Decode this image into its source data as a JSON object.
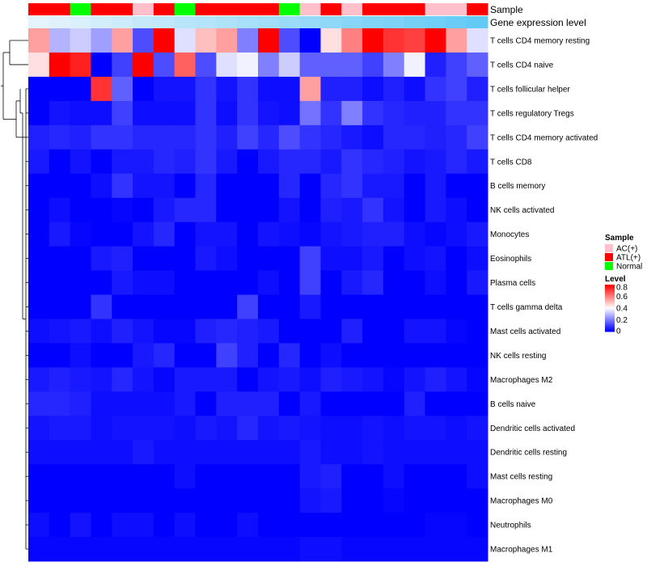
{
  "chart_data": {
    "type": "heatmap",
    "title": "",
    "annotation_tracks": [
      {
        "name": "Sample",
        "values": [
          "ATL(+)",
          "ATL(+)",
          "Normal",
          "ATL(+)",
          "ATL(+)",
          "AC(+)",
          "ATL(+)",
          "Normal",
          "ATL(+)",
          "ATL(+)",
          "ATL(+)",
          "ATL(+)",
          "Normal",
          "AC(+)",
          "ATL(+)",
          "AC(+)",
          "ATL(+)",
          "ATL(+)",
          "ATL(+)",
          "AC(+)",
          "AC(+)",
          "ATL(+)"
        ]
      },
      {
        "name": "Gene expression level",
        "values": [
          0.02,
          0.06,
          0.1,
          0.15,
          0.2,
          0.24,
          0.28,
          0.33,
          0.37,
          0.42,
          0.46,
          0.5,
          0.55,
          0.59,
          0.63,
          0.68,
          0.72,
          0.76,
          0.81,
          0.85,
          0.9,
          0.95
        ]
      }
    ],
    "rows": [
      "T cells CD4 memory resting",
      "T cells CD4 naive",
      "T cells follicular helper",
      "T cells regulatory  Tregs",
      "T cells CD4 memory activated",
      "T cells CD8",
      "B cells memory",
      "NK cells activated",
      "Monocytes",
      "Eosinophils",
      "Plasma cells",
      "T cells gamma delta",
      "Mast cells activated",
      "NK cells resting",
      "Macrophages M2",
      "B cells naive",
      "Dendritic cells activated",
      "Dendritic cells resting",
      "Mast cells resting",
      "Macrophages M0",
      "Neutrophils",
      "Macrophages M1"
    ],
    "values": [
      [
        0.55,
        0.28,
        0.32,
        0.25,
        0.55,
        0.12,
        0.8,
        0.35,
        0.5,
        0.55,
        0.2,
        0.8,
        0.12,
        0,
        0.45,
        0.6,
        0.8,
        0.72,
        0.7,
        0.8,
        0.55,
        0.35
      ],
      [
        0.45,
        0.8,
        0.75,
        0,
        0.1,
        0.8,
        0.12,
        0.65,
        0.12,
        0.35,
        0.38,
        0.2,
        0.32,
        0.15,
        0.15,
        0.15,
        0.1,
        0.2,
        0.38,
        0.05,
        0.1,
        0.15
      ],
      [
        0,
        0,
        0,
        0.72,
        0.15,
        0,
        0.03,
        0.03,
        0.08,
        0.03,
        0.08,
        0.02,
        0.02,
        0.55,
        0.05,
        0.05,
        0.02,
        0.05,
        0.02,
        0.08,
        0.1,
        0.05
      ],
      [
        0,
        0.03,
        0.02,
        0.02,
        0.1,
        0.02,
        0.02,
        0.02,
        0.08,
        0.02,
        0.08,
        0.03,
        0.02,
        0.18,
        0.08,
        0.2,
        0.08,
        0.06,
        0.05,
        0.05,
        0.08,
        0.08
      ],
      [
        0.05,
        0.06,
        0.05,
        0.08,
        0.08,
        0.06,
        0.06,
        0.06,
        0.08,
        0.05,
        0.1,
        0.06,
        0.12,
        0.08,
        0.06,
        0.04,
        0.02,
        0.06,
        0.06,
        0.05,
        0.06,
        0.1
      ],
      [
        0.04,
        0,
        0.03,
        0,
        0.04,
        0.04,
        0.06,
        0.05,
        0.08,
        0.04,
        0,
        0.04,
        0.06,
        0.06,
        0.04,
        0.08,
        0.06,
        0.05,
        0.03,
        0.04,
        0.06,
        0.04
      ],
      [
        0,
        0,
        0,
        0.02,
        0.08,
        0.03,
        0.03,
        0,
        0.06,
        0,
        0,
        0,
        0.06,
        0,
        0.06,
        0.08,
        0.04,
        0.04,
        0,
        0.04,
        0,
        0
      ],
      [
        0,
        0.02,
        0,
        0,
        0.01,
        0,
        0.04,
        0.06,
        0.06,
        0,
        0,
        0,
        0.03,
        0,
        0.05,
        0.04,
        0.08,
        0.03,
        0,
        0.04,
        0.02,
        0
      ],
      [
        0,
        0.04,
        0.01,
        0,
        0,
        0.03,
        0.06,
        0,
        0.03,
        0.03,
        0,
        0.03,
        0.02,
        0.01,
        0.03,
        0.04,
        0.05,
        0.05,
        0.02,
        0.01,
        0.02,
        0.04
      ],
      [
        0,
        0,
        0,
        0.04,
        0.05,
        0,
        0,
        0,
        0.04,
        0.02,
        0,
        0,
        0,
        0.1,
        0.02,
        0.02,
        0.04,
        0,
        0.02,
        0.03,
        0,
        0.02
      ],
      [
        0,
        0,
        0,
        0,
        0.04,
        0.02,
        0.02,
        0,
        0,
        0,
        0,
        0.02,
        0,
        0.1,
        0,
        0.04,
        0.06,
        0,
        0,
        0.02,
        0,
        0.04
      ],
      [
        0,
        0,
        0,
        0.08,
        0,
        0,
        0,
        0,
        0,
        0,
        0.1,
        0,
        0,
        0.04,
        0,
        0,
        0,
        0,
        0,
        0,
        0,
        0
      ],
      [
        0.02,
        0.03,
        0.04,
        0.02,
        0.05,
        0.03,
        0.01,
        0.01,
        0.05,
        0.06,
        0.05,
        0.04,
        0,
        0,
        0,
        0.05,
        0,
        0,
        0.03,
        0.03,
        0.01,
        0
      ],
      [
        0,
        0,
        0.02,
        0,
        0,
        0.04,
        0.06,
        0,
        0,
        0.1,
        0.05,
        0,
        0.06,
        0,
        0.02,
        0,
        0,
        0,
        0,
        0,
        0,
        0
      ],
      [
        0.04,
        0.05,
        0.04,
        0.03,
        0.06,
        0.03,
        0.01,
        0.04,
        0.04,
        0.04,
        0,
        0.03,
        0.04,
        0.02,
        0.05,
        0.04,
        0.03,
        0.01,
        0.03,
        0.05,
        0.03,
        0.01
      ],
      [
        0.06,
        0.06,
        0.05,
        0.02,
        0.02,
        0.02,
        0.02,
        0.04,
        0,
        0.05,
        0.05,
        0.05,
        0,
        0.04,
        0,
        0,
        0,
        0,
        0.05,
        0,
        0,
        0
      ],
      [
        0.03,
        0.04,
        0.04,
        0.02,
        0.03,
        0.03,
        0.03,
        0.02,
        0.04,
        0.03,
        0.06,
        0.03,
        0.04,
        0.03,
        0.02,
        0.02,
        0.03,
        0.02,
        0.03,
        0.03,
        0.02,
        0.03
      ],
      [
        0.02,
        0.02,
        0.02,
        0.02,
        0.02,
        0.04,
        0.02,
        0.02,
        0.02,
        0.02,
        0.02,
        0.02,
        0.02,
        0.04,
        0.02,
        0.02,
        0.03,
        0.02,
        0.02,
        0.02,
        0.02,
        0.02
      ],
      [
        0,
        0,
        0,
        0,
        0,
        0,
        0,
        0.02,
        0,
        0,
        0,
        0,
        0,
        0.04,
        0.05,
        0,
        0,
        0.02,
        0,
        0,
        0,
        0.02
      ],
      [
        0,
        0,
        0,
        0,
        0,
        0,
        0,
        0,
        0,
        0,
        0,
        0,
        0,
        0.03,
        0.04,
        0,
        0,
        0.01,
        0,
        0,
        0,
        0
      ],
      [
        0.02,
        0,
        0.03,
        0,
        0.02,
        0.02,
        0,
        0.02,
        0,
        0,
        0.02,
        0,
        0,
        0,
        0,
        0,
        0,
        0,
        0,
        0.01,
        0.01,
        0
      ],
      [
        0.01,
        0.01,
        0.01,
        0.01,
        0.01,
        0.01,
        0.01,
        0.01,
        0.01,
        0.01,
        0.01,
        0.01,
        0.01,
        0.02,
        0.02,
        0.01,
        0.01,
        0.01,
        0.01,
        0.01,
        0.01,
        0.01
      ]
    ],
    "color_scale": {
      "low": "#0000ff",
      "mid": "#ffffff",
      "high": "#ff0000",
      "min": 0,
      "mid_value": 0.4,
      "max": 0.8
    },
    "legend": {
      "sample_title": "Sample",
      "sample_items": [
        {
          "label": "AC(+)",
          "color": "#ffc0cb"
        },
        {
          "label": "ATL(+)",
          "color": "#ff0000"
        },
        {
          "label": "Normal",
          "color": "#00ff00"
        }
      ],
      "level_title": "Level",
      "level_ticks": [
        0.8,
        0.6,
        0.4,
        0.2,
        0
      ],
      "level_tick_labels": [
        "0.8",
        "0.6",
        "0.4",
        "0.2",
        "0"
      ],
      "placement": "right"
    },
    "gene_expr_colors": {
      "low": "#e8f4fc",
      "high": "#5bc8f5"
    },
    "dendrogram": "row clustering tree on left"
  }
}
